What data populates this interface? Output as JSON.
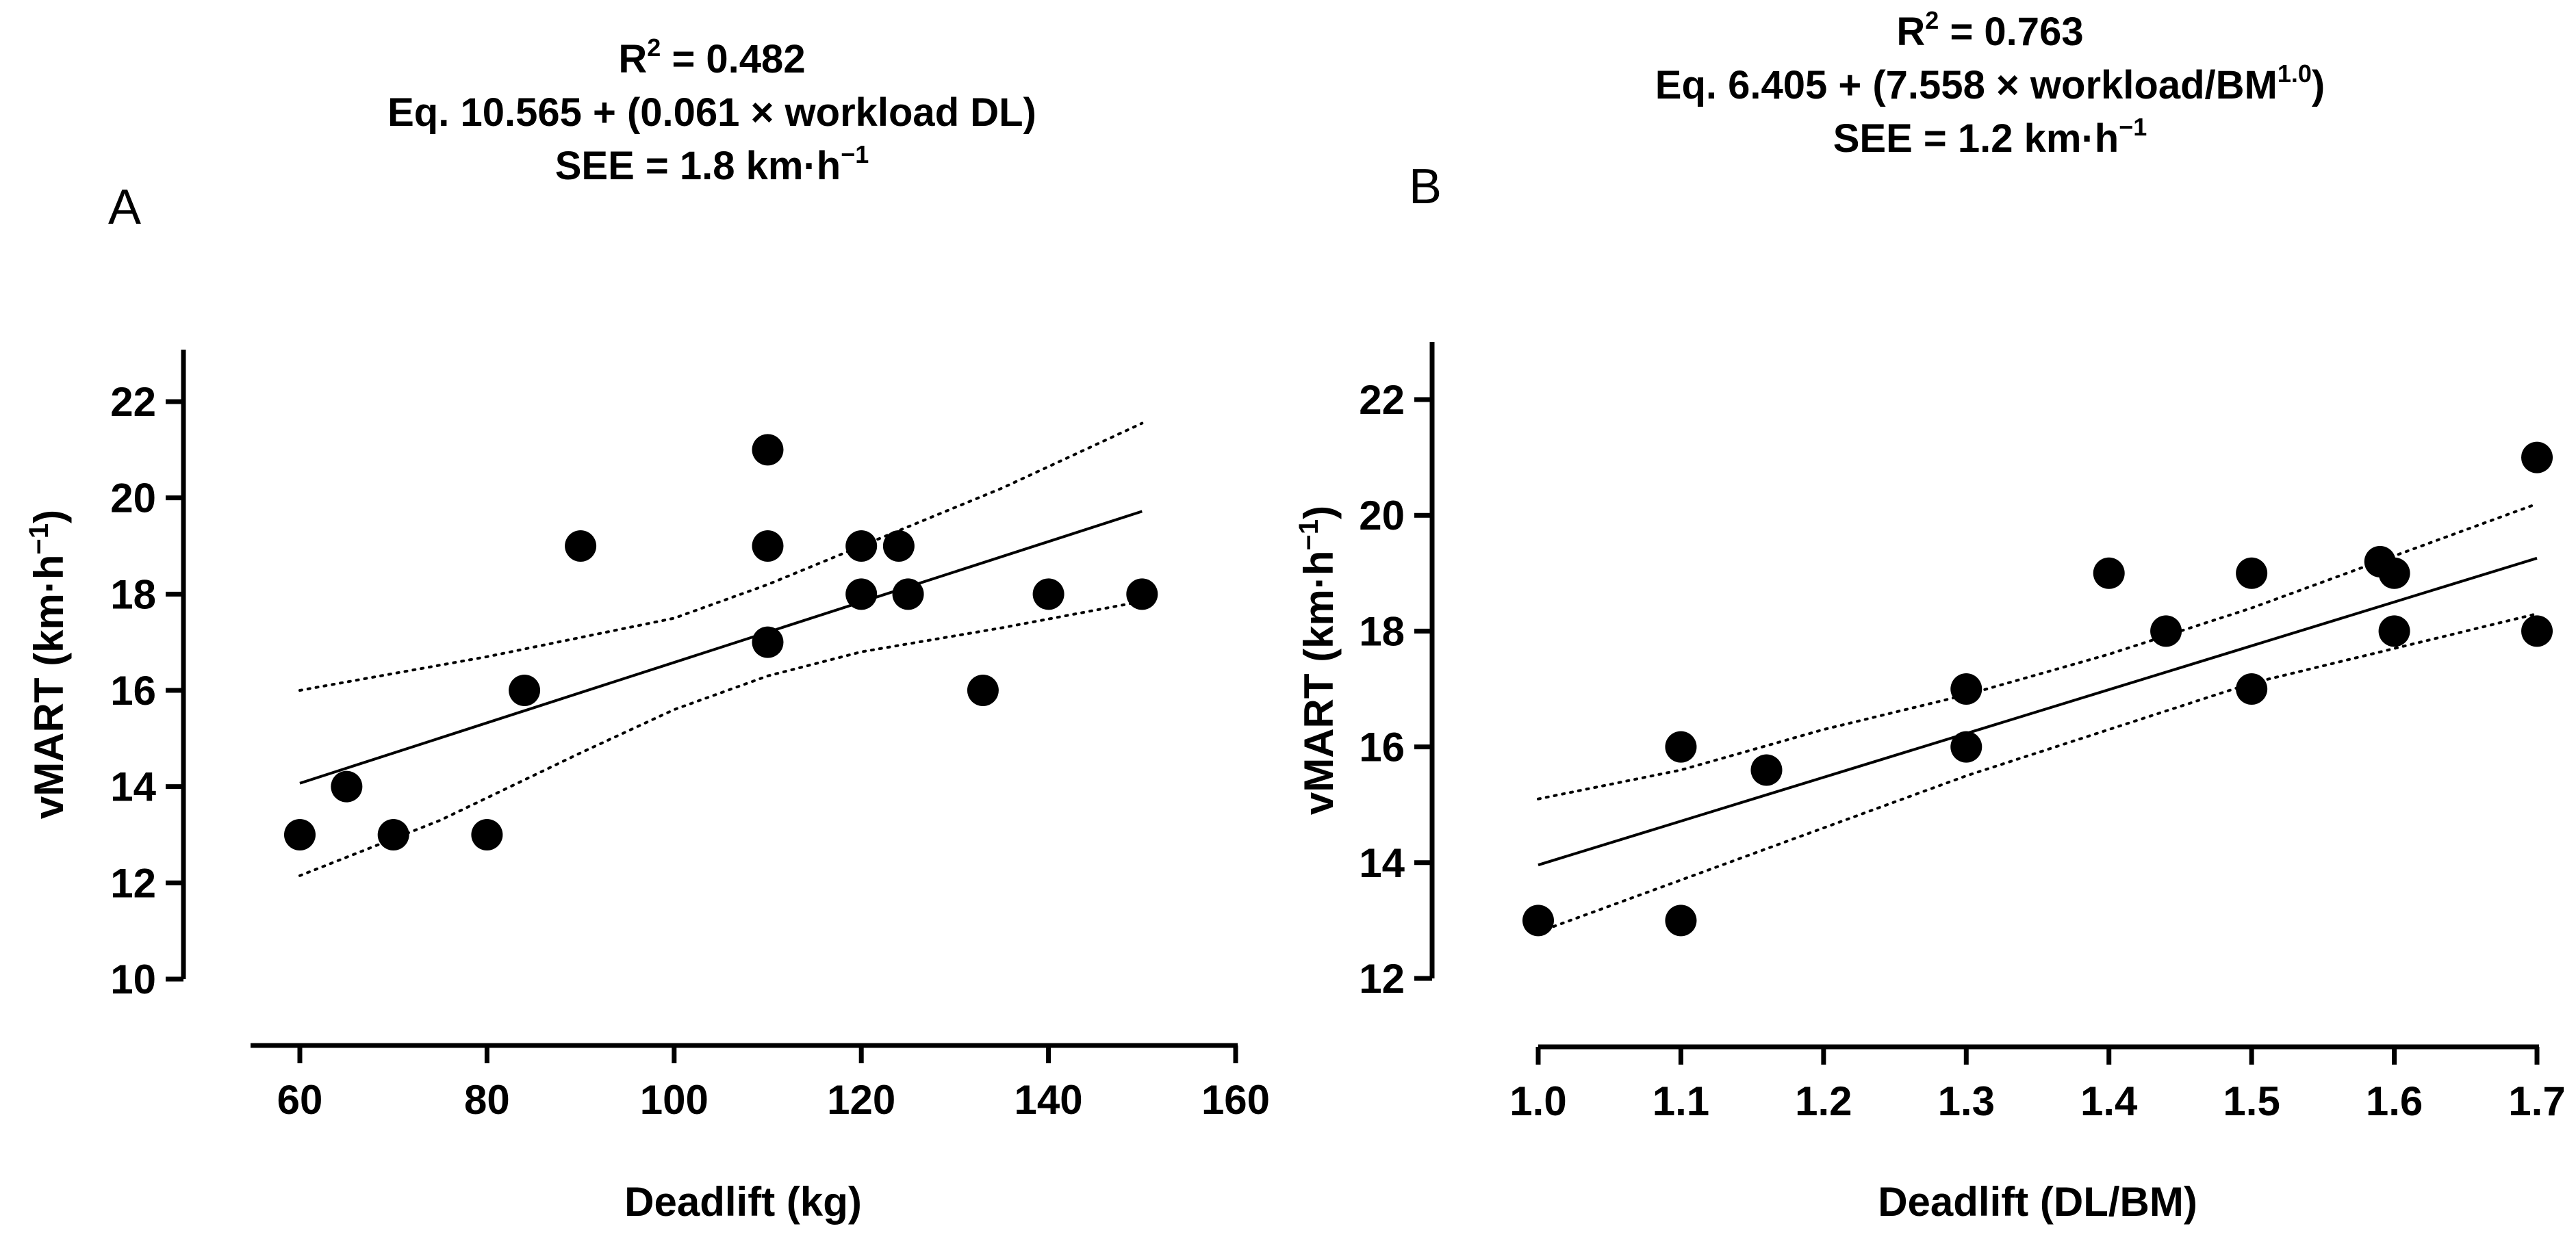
{
  "panels": [
    {
      "letter": "A",
      "header": {
        "r2_prefix": "R",
        "r2_sup": "2",
        "r2_value": " = 0.482",
        "eq": "Eq. 10.565 + (0.061 × workload DL)",
        "eq_sup": "",
        "eq_end": "",
        "see_prefix": "SEE = 1.8 km·h",
        "see_sup": "−1"
      }
    },
    {
      "letter": "B",
      "header": {
        "r2_prefix": "R",
        "r2_sup": "2",
        "r2_value": " = 0.763",
        "eq": "Eq. 6.405 + (7.558 × workload/BM",
        "eq_sup": "1.0",
        "eq_end": ")",
        "see_prefix": "SEE = 1.2 km·h",
        "see_sup": "−1"
      }
    }
  ],
  "chart_data": [
    {
      "type": "scatter",
      "xlabel": "Deadlift (kg)",
      "ylabel": "vMART (km·h",
      "ylabel_sup": "−1",
      "ylabel_end": ")",
      "xlim": [
        55,
        160
      ],
      "ylim": [
        10,
        23
      ],
      "xticks": [
        60,
        80,
        100,
        120,
        140,
        160
      ],
      "yticks": [
        10,
        12,
        14,
        16,
        18,
        20,
        22
      ],
      "points": [
        {
          "x": 60,
          "y": 13
        },
        {
          "x": 65,
          "y": 14
        },
        {
          "x": 70,
          "y": 13
        },
        {
          "x": 80,
          "y": 13
        },
        {
          "x": 84,
          "y": 16
        },
        {
          "x": 90,
          "y": 19
        },
        {
          "x": 110,
          "y": 21
        },
        {
          "x": 110,
          "y": 19
        },
        {
          "x": 110,
          "y": 17
        },
        {
          "x": 120,
          "y": 19
        },
        {
          "x": 120,
          "y": 18
        },
        {
          "x": 124,
          "y": 19
        },
        {
          "x": 125,
          "y": 18
        },
        {
          "x": 133,
          "y": 16
        },
        {
          "x": 140,
          "y": 18
        },
        {
          "x": 150,
          "y": 18
        }
      ],
      "regression": {
        "x": [
          60,
          150
        ],
        "y": [
          14.07,
          19.72
        ]
      },
      "ci_upper": {
        "x": [
          60,
          80,
          100,
          110,
          120,
          135,
          150
        ],
        "y": [
          16.0,
          16.7,
          17.5,
          18.2,
          19.0,
          20.2,
          21.55
        ]
      },
      "ci_lower": {
        "x": [
          60,
          75,
          90,
          100,
          110,
          120,
          135,
          150
        ],
        "y": [
          12.15,
          13.3,
          14.7,
          15.6,
          16.3,
          16.8,
          17.3,
          17.85
        ]
      }
    },
    {
      "type": "scatter",
      "xlabel": "Deadlift (DL/BM)",
      "ylabel": "vMART (km·h",
      "ylabel_sup": "−1",
      "ylabel_end": ")",
      "xlim": [
        1.0,
        1.7
      ],
      "ylim": [
        12,
        23
      ],
      "xticks": [
        "1.0",
        "1.1",
        "1.2",
        "1.3",
        "1.4",
        "1.5",
        "1.6",
        "1.7"
      ],
      "yticks": [
        12,
        14,
        16,
        18,
        20,
        22
      ],
      "points": [
        {
          "x": 1.0,
          "y": 13
        },
        {
          "x": 1.1,
          "y": 16
        },
        {
          "x": 1.1,
          "y": 13
        },
        {
          "x": 1.16,
          "y": 15.6
        },
        {
          "x": 1.3,
          "y": 17
        },
        {
          "x": 1.3,
          "y": 16
        },
        {
          "x": 1.4,
          "y": 19
        },
        {
          "x": 1.44,
          "y": 18
        },
        {
          "x": 1.5,
          "y": 19
        },
        {
          "x": 1.5,
          "y": 17
        },
        {
          "x": 1.59,
          "y": 19.2
        },
        {
          "x": 1.6,
          "y": 19
        },
        {
          "x": 1.6,
          "y": 18
        },
        {
          "x": 1.7,
          "y": 21
        },
        {
          "x": 1.7,
          "y": 18
        }
      ],
      "regression": {
        "x": [
          1.0,
          1.7
        ],
        "y": [
          13.96,
          19.26
        ]
      },
      "ci_upper": {
        "x": [
          1.0,
          1.1,
          1.2,
          1.3,
          1.4,
          1.5,
          1.6,
          1.7
        ],
        "y": [
          15.1,
          15.6,
          16.3,
          16.9,
          17.6,
          18.4,
          19.3,
          20.2
        ]
      },
      "ci_lower": {
        "x": [
          1.0,
          1.1,
          1.2,
          1.3,
          1.4,
          1.5,
          1.6,
          1.7
        ],
        "y": [
          12.8,
          13.7,
          14.6,
          15.5,
          16.3,
          17.1,
          17.7,
          18.3
        ]
      }
    }
  ]
}
